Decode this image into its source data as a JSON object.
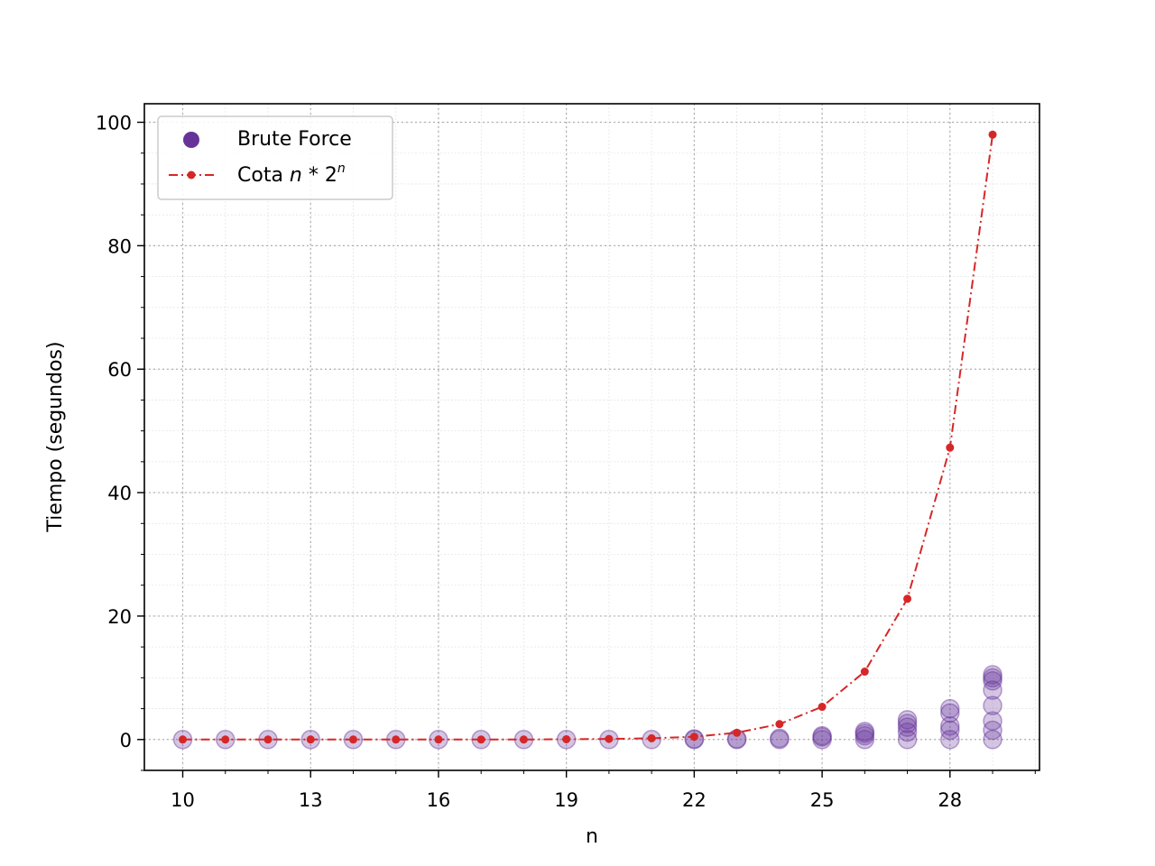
{
  "chart_data": {
    "type": "scatter",
    "xlabel": "n",
    "ylabel": "Tiempo (segundos)",
    "xlim": [
      9.1,
      30.1
    ],
    "ylim": [
      -5,
      103
    ],
    "x_ticks": [
      10,
      13,
      16,
      19,
      22,
      25,
      28
    ],
    "y_ticks": [
      0,
      20,
      40,
      60,
      80,
      100
    ],
    "grid": true,
    "legend_position": "top-left",
    "colors": {
      "brute_force": "#663399",
      "bound": "#d62728"
    },
    "series": [
      {
        "name": "Brute Force",
        "kind": "scatter",
        "points": [
          {
            "x": 10,
            "y": 0
          },
          {
            "x": 11,
            "y": 0
          },
          {
            "x": 12,
            "y": 0
          },
          {
            "x": 13,
            "y": 0
          },
          {
            "x": 14,
            "y": 0
          },
          {
            "x": 15,
            "y": 0
          },
          {
            "x": 16,
            "y": 0
          },
          {
            "x": 17,
            "y": 0
          },
          {
            "x": 18,
            "y": 0
          },
          {
            "x": 19,
            "y": 0
          },
          {
            "x": 20,
            "y": 0
          },
          {
            "x": 21,
            "y": 0
          },
          {
            "x": 22,
            "y": 0
          },
          {
            "x": 22,
            "y": 0.1
          },
          {
            "x": 23,
            "y": 0
          },
          {
            "x": 23,
            "y": 0.1
          },
          {
            "x": 24,
            "y": 0
          },
          {
            "x": 24,
            "y": 0.2
          },
          {
            "x": 25,
            "y": 0
          },
          {
            "x": 25,
            "y": 0.4
          },
          {
            "x": 25,
            "y": 0.6
          },
          {
            "x": 26,
            "y": 0
          },
          {
            "x": 26,
            "y": 0.6
          },
          {
            "x": 26,
            "y": 1.0
          },
          {
            "x": 26,
            "y": 1.3
          },
          {
            "x": 27,
            "y": 0
          },
          {
            "x": 27,
            "y": 1.2
          },
          {
            "x": 27,
            "y": 2.0
          },
          {
            "x": 27,
            "y": 2.6
          },
          {
            "x": 27,
            "y": 3.2
          },
          {
            "x": 28,
            "y": 0
          },
          {
            "x": 28,
            "y": 1.5
          },
          {
            "x": 28,
            "y": 2.2
          },
          {
            "x": 28,
            "y": 4.3
          },
          {
            "x": 28,
            "y": 5.0
          },
          {
            "x": 29,
            "y": 0
          },
          {
            "x": 29,
            "y": 1.5
          },
          {
            "x": 29,
            "y": 3.0
          },
          {
            "x": 29,
            "y": 5.5
          },
          {
            "x": 29,
            "y": 8.0
          },
          {
            "x": 29,
            "y": 9.5
          },
          {
            "x": 29,
            "y": 10.0
          },
          {
            "x": 29,
            "y": 10.5
          }
        ]
      },
      {
        "name": "Cota",
        "kind": "line",
        "x": [
          10,
          11,
          12,
          13,
          14,
          15,
          16,
          17,
          18,
          19,
          20,
          21,
          22,
          23,
          24,
          25,
          26,
          27,
          28,
          29
        ],
        "values": [
          0.0,
          0.0,
          0.0,
          0.0,
          0.0,
          0.0,
          0.0,
          0.0,
          0.0,
          0.05,
          0.1,
          0.2,
          0.45,
          1.1,
          2.5,
          5.3,
          11.0,
          22.8,
          47.3,
          98.0
        ]
      }
    ],
    "legend": {
      "brute_force_label": "Brute Force",
      "bound_label_prefix": "Cota ",
      "bound_label_math": "n",
      "bound_label_op": " * 2",
      "bound_label_exp": "n"
    }
  }
}
